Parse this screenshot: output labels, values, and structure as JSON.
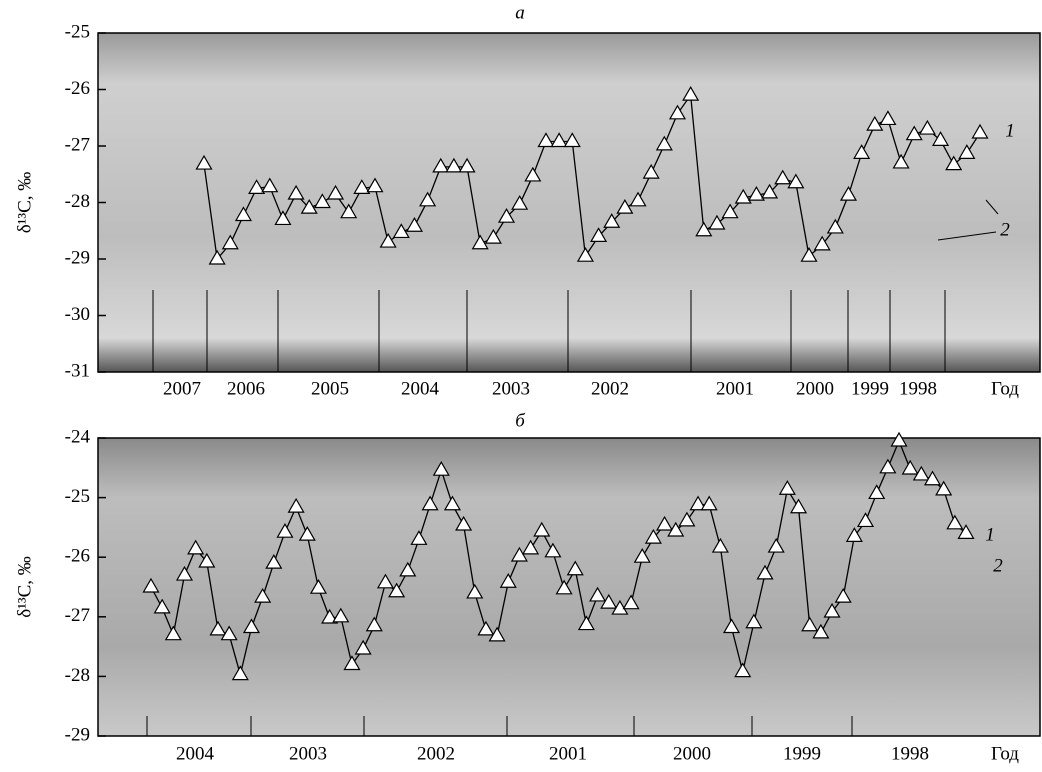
{
  "chart_data": [
    {
      "type": "line",
      "title": "а",
      "ylabel": "δ¹³C, ‰",
      "xlabel": "Год",
      "ylim": [
        -31,
        -25
      ],
      "yticks": [
        -31,
        -30,
        -29,
        -28,
        -27,
        -26,
        -25
      ],
      "x_labels": [
        "2007",
        "2006",
        "2005",
        "2004",
        "2003",
        "2002",
        "2001",
        "2000",
        "1999",
        "1998"
      ],
      "annotations": [
        "1",
        "2"
      ],
      "color": "#000000",
      "values": [
        -27.32,
        -29.0,
        -28.73,
        -28.23,
        -27.75,
        -27.72,
        -28.3,
        -27.85,
        -28.1,
        -28.0,
        -27.85,
        -28.18,
        -27.75,
        -27.72,
        -28.7,
        -28.53,
        -28.42,
        -27.97,
        -27.37,
        -27.37,
        -27.37,
        -28.73,
        -28.63,
        -28.26,
        -28.03,
        -27.53,
        -26.92,
        -26.92,
        -26.92,
        -28.95,
        -28.6,
        -28.35,
        -28.1,
        -27.97,
        -27.48,
        -26.98,
        -26.43,
        -26.1,
        -28.5,
        -28.38,
        -28.18,
        -27.92,
        -27.87,
        -27.83,
        -27.58,
        -27.65,
        -28.95,
        -28.75,
        -28.45,
        -27.87,
        -27.13,
        -26.63,
        -26.53,
        -27.3,
        -26.8,
        -26.7,
        -26.9,
        -27.33,
        -27.13,
        -26.77
      ]
    },
    {
      "type": "line",
      "title": "б",
      "ylabel": "δ¹³C, ‰",
      "xlabel": "Год",
      "ylim": [
        -29,
        -24
      ],
      "yticks": [
        -29,
        -28,
        -27,
        -26,
        -25,
        -24
      ],
      "x_labels": [
        "2004",
        "2003",
        "2002",
        "2001",
        "2000",
        "1999",
        "1998"
      ],
      "annotations": [
        "1",
        "2"
      ],
      "color": "#000000",
      "values": [
        -26.5,
        -26.85,
        -27.3,
        -26.3,
        -25.86,
        -26.08,
        -27.22,
        -27.3,
        -27.97,
        -27.18,
        -26.67,
        -26.1,
        -25.58,
        -25.16,
        -25.63,
        -26.52,
        -27.02,
        -27.0,
        -27.8,
        -27.54,
        -27.15,
        -26.43,
        -26.58,
        -26.23,
        -25.7,
        -25.12,
        -24.54,
        -25.12,
        -25.46,
        -26.6,
        -27.22,
        -27.32,
        -26.42,
        -25.98,
        -25.86,
        -25.56,
        -25.91,
        -26.53,
        -26.21,
        -27.13,
        -26.65,
        -26.77,
        -26.87,
        -26.78,
        -26.0,
        -25.68,
        -25.46,
        -25.56,
        -25.39,
        -25.12,
        -25.12,
        -25.83,
        -27.18,
        -27.92,
        -27.1,
        -26.28,
        -25.83,
        -24.86,
        -25.17,
        -27.15,
        -27.27,
        -26.92,
        -26.67,
        -25.65,
        -25.4,
        -24.93,
        -24.5,
        -24.05,
        -24.52,
        -24.62,
        -24.7,
        -24.87,
        -25.44,
        -25.6
      ]
    }
  ]
}
